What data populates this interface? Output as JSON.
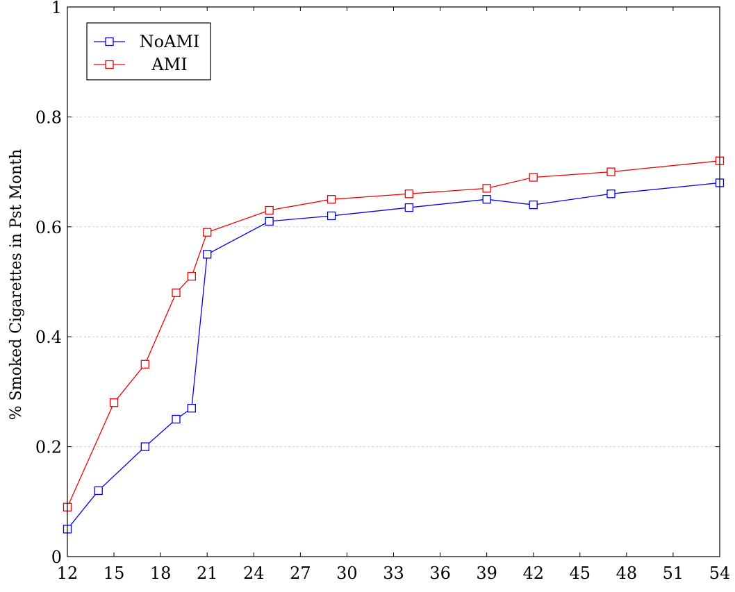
{
  "chart_data": {
    "type": "line",
    "title": "",
    "xlabel": "",
    "ylabel": "% Smoked Cigarettes in Pst Month",
    "xlim": [
      12,
      54
    ],
    "ylim": [
      0,
      1
    ],
    "x_ticks": [
      12,
      15,
      18,
      21,
      24,
      27,
      30,
      33,
      36,
      39,
      42,
      45,
      48,
      51,
      54
    ],
    "x_tick_labels": [
      "12",
      "15",
      "18",
      "21",
      "24",
      "27",
      "30",
      "33",
      "36",
      "39",
      "42",
      "45",
      "48",
      "51",
      "54"
    ],
    "y_ticks": [
      0,
      0.2,
      0.4,
      0.6,
      0.8,
      1
    ],
    "y_tick_labels": [
      "0",
      "0.2",
      "0.4",
      "0.6",
      "0.8",
      "1"
    ],
    "grid": "horizontal dashed",
    "legend_position": "top-left",
    "marker": "square",
    "series": [
      {
        "name": "NoAMI",
        "color": "#0000ee",
        "points": [
          [
            12,
            0.05
          ],
          [
            14,
            0.12
          ],
          [
            17,
            0.2
          ],
          [
            19,
            0.25
          ],
          [
            20,
            0.27
          ],
          [
            21,
            0.55
          ],
          [
            25,
            0.61
          ],
          [
            29,
            0.62
          ],
          [
            34,
            0.635
          ],
          [
            39,
            0.65
          ],
          [
            42,
            0.64
          ],
          [
            47,
            0.66
          ],
          [
            54,
            0.68
          ]
        ]
      },
      {
        "name": "AMI",
        "color": "#ee0000",
        "points": [
          [
            12,
            0.09
          ],
          [
            15,
            0.28
          ],
          [
            17,
            0.35
          ],
          [
            19,
            0.48
          ],
          [
            20,
            0.51
          ],
          [
            21,
            0.59
          ],
          [
            25,
            0.63
          ],
          [
            29,
            0.65
          ],
          [
            34,
            0.66
          ],
          [
            39,
            0.67
          ],
          [
            42,
            0.69
          ],
          [
            47,
            0.7
          ],
          [
            54,
            0.72
          ]
        ]
      }
    ]
  }
}
